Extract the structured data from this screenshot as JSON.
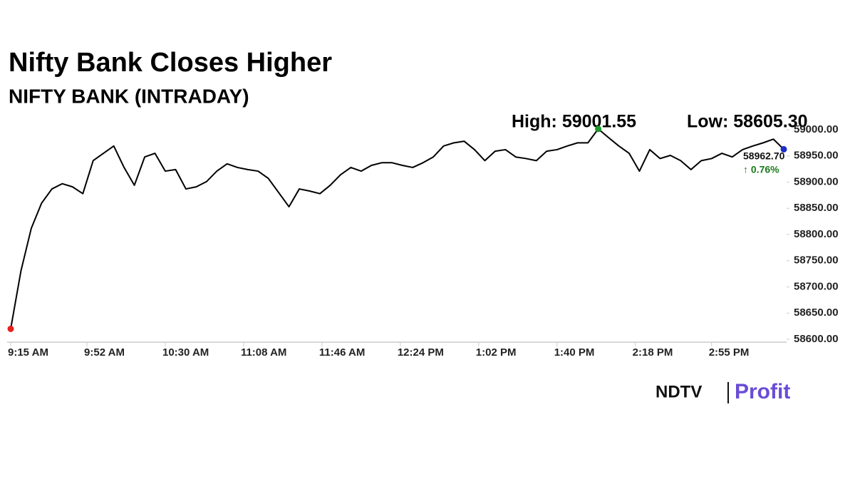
{
  "chart_data": {
    "type": "line",
    "title": "Nifty Bank Closes Higher",
    "subtitle": "NIFTY BANK (INTRADAY)",
    "high_label": "High: 59001.55",
    "low_label": "Low: 58605.30",
    "last_label": "58962.70",
    "change_label": "↑ 0.76%",
    "color": "#000000",
    "low_color": "#e8201c",
    "high_color": "#1a9a2a",
    "last_color": "#1a2fc8",
    "change_color": "#1a7a1a",
    "x": [
      555,
      560,
      565,
      570,
      575,
      580,
      585,
      590,
      595,
      600,
      605,
      610,
      615,
      620,
      625,
      630,
      635,
      640,
      645,
      650,
      655,
      660,
      665,
      670,
      675,
      680,
      685,
      690,
      695,
      700,
      705,
      710,
      715,
      720,
      725,
      730,
      735,
      740,
      745,
      750,
      755,
      760,
      765,
      770,
      775,
      780,
      785,
      790,
      795,
      800,
      805,
      810,
      815,
      820,
      825,
      830,
      835,
      840,
      845,
      850,
      855,
      860,
      865,
      870,
      875,
      880,
      885,
      890,
      895,
      900,
      905,
      910,
      915,
      920,
      925,
      930
    ],
    "values": [
      58620,
      58731,
      58812,
      58860,
      58887,
      58897,
      58891,
      58878,
      58941,
      58955,
      58969,
      58928,
      58894,
      58948,
      58955,
      58921,
      58924,
      58887,
      58891,
      58901,
      58921,
      58935,
      58928,
      58924,
      58921,
      58907,
      58880,
      58853,
      58887,
      58883,
      58878,
      58894,
      58914,
      58928,
      58921,
      58932,
      58937,
      58937,
      58932,
      58928,
      58937,
      58948,
      58969,
      58975,
      58978,
      58962,
      58941,
      58959,
      58962,
      58948,
      58945,
      58941,
      58959,
      58962,
      58969,
      58975,
      58975,
      59001.55,
      58985,
      58969,
      58955,
      58921,
      58962,
      58945,
      58951,
      58941,
      58924,
      58941,
      58945,
      58955,
      58948,
      58962,
      58969,
      58975,
      58982,
      58962.7
    ],
    "xlim": [
      555,
      930
    ],
    "xticks": [
      {
        "value": 555,
        "label": "9:15 AM"
      },
      {
        "value": 592,
        "label": "9:52 AM"
      },
      {
        "value": 630,
        "label": "10:30 AM"
      },
      {
        "value": 668,
        "label": "11:08 AM"
      },
      {
        "value": 706,
        "label": "11:46 AM"
      },
      {
        "value": 744,
        "label": "12:24 PM"
      },
      {
        "value": 782,
        "label": "1:02 PM"
      },
      {
        "value": 820,
        "label": "1:40 PM"
      },
      {
        "value": 858,
        "label": "2:18 PM"
      },
      {
        "value": 895,
        "label": "2:55 PM"
      }
    ],
    "ylim": [
      58595,
      59010
    ],
    "yticks": [
      {
        "value": 58600,
        "label": "58600.00"
      },
      {
        "value": 58650,
        "label": "58650.00"
      },
      {
        "value": 58700,
        "label": "58700.00"
      },
      {
        "value": 58750,
        "label": "58750.00"
      },
      {
        "value": 58800,
        "label": "58800.00"
      },
      {
        "value": 58850,
        "label": "58850.00"
      },
      {
        "value": 58900,
        "label": "58900.00"
      },
      {
        "value": 58950,
        "label": "58950.00"
      },
      {
        "value": 59000,
        "label": "59000.00"
      }
    ]
  },
  "logo": {
    "left": "NDTV",
    "right": "Profit"
  }
}
